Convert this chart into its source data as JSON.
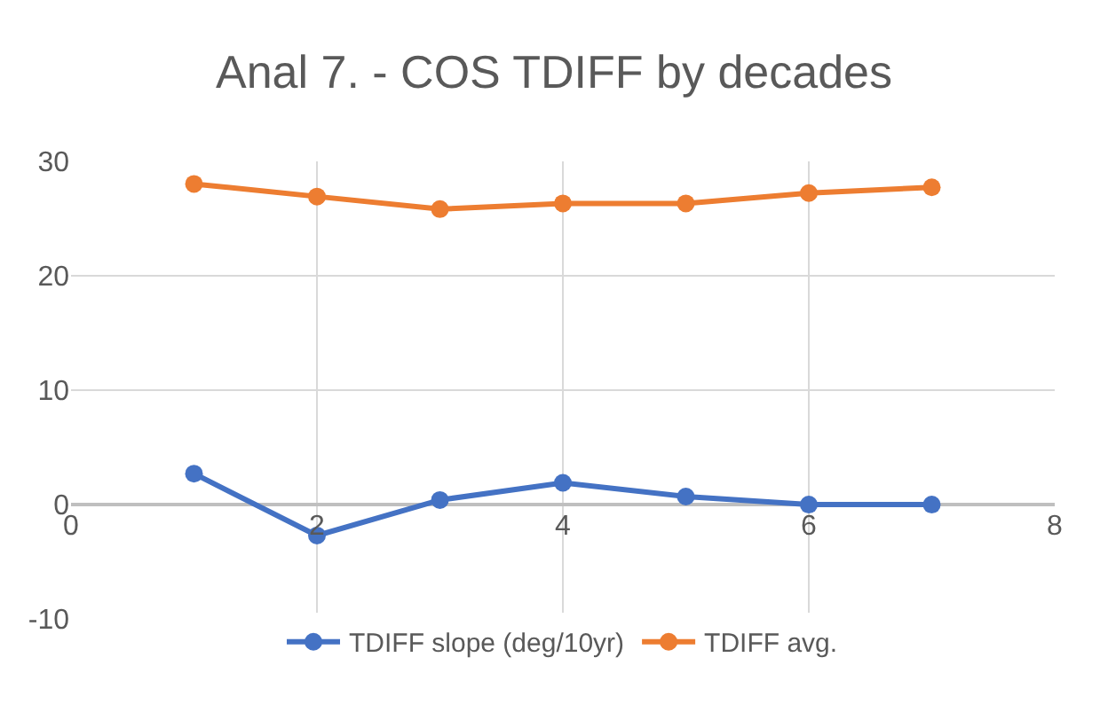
{
  "chart_data": {
    "type": "line",
    "title": "Anal 7. - COS TDIFF by decades",
    "x": [
      1,
      2,
      3,
      4,
      5,
      6,
      7
    ],
    "series": [
      {
        "name": "TDIFF slope (deg/10yr)",
        "color": "#4472c4",
        "values": [
          2.7,
          -2.7,
          0.4,
          1.9,
          0.7,
          0,
          0
        ]
      },
      {
        "name": "TDIFF avg.",
        "color": "#ed7d31",
        "values": [
          28.0,
          26.9,
          25.8,
          26.3,
          26.3,
          27.2,
          27.7
        ]
      }
    ],
    "xlim": [
      0,
      8
    ],
    "xticks": [
      0,
      2,
      4,
      6,
      8
    ],
    "ylim": [
      -10,
      30
    ],
    "yticks": [
      -10,
      0,
      10,
      20,
      30
    ],
    "grid": true,
    "legend": "bottom",
    "marker": "circle",
    "line_style": "solid"
  }
}
